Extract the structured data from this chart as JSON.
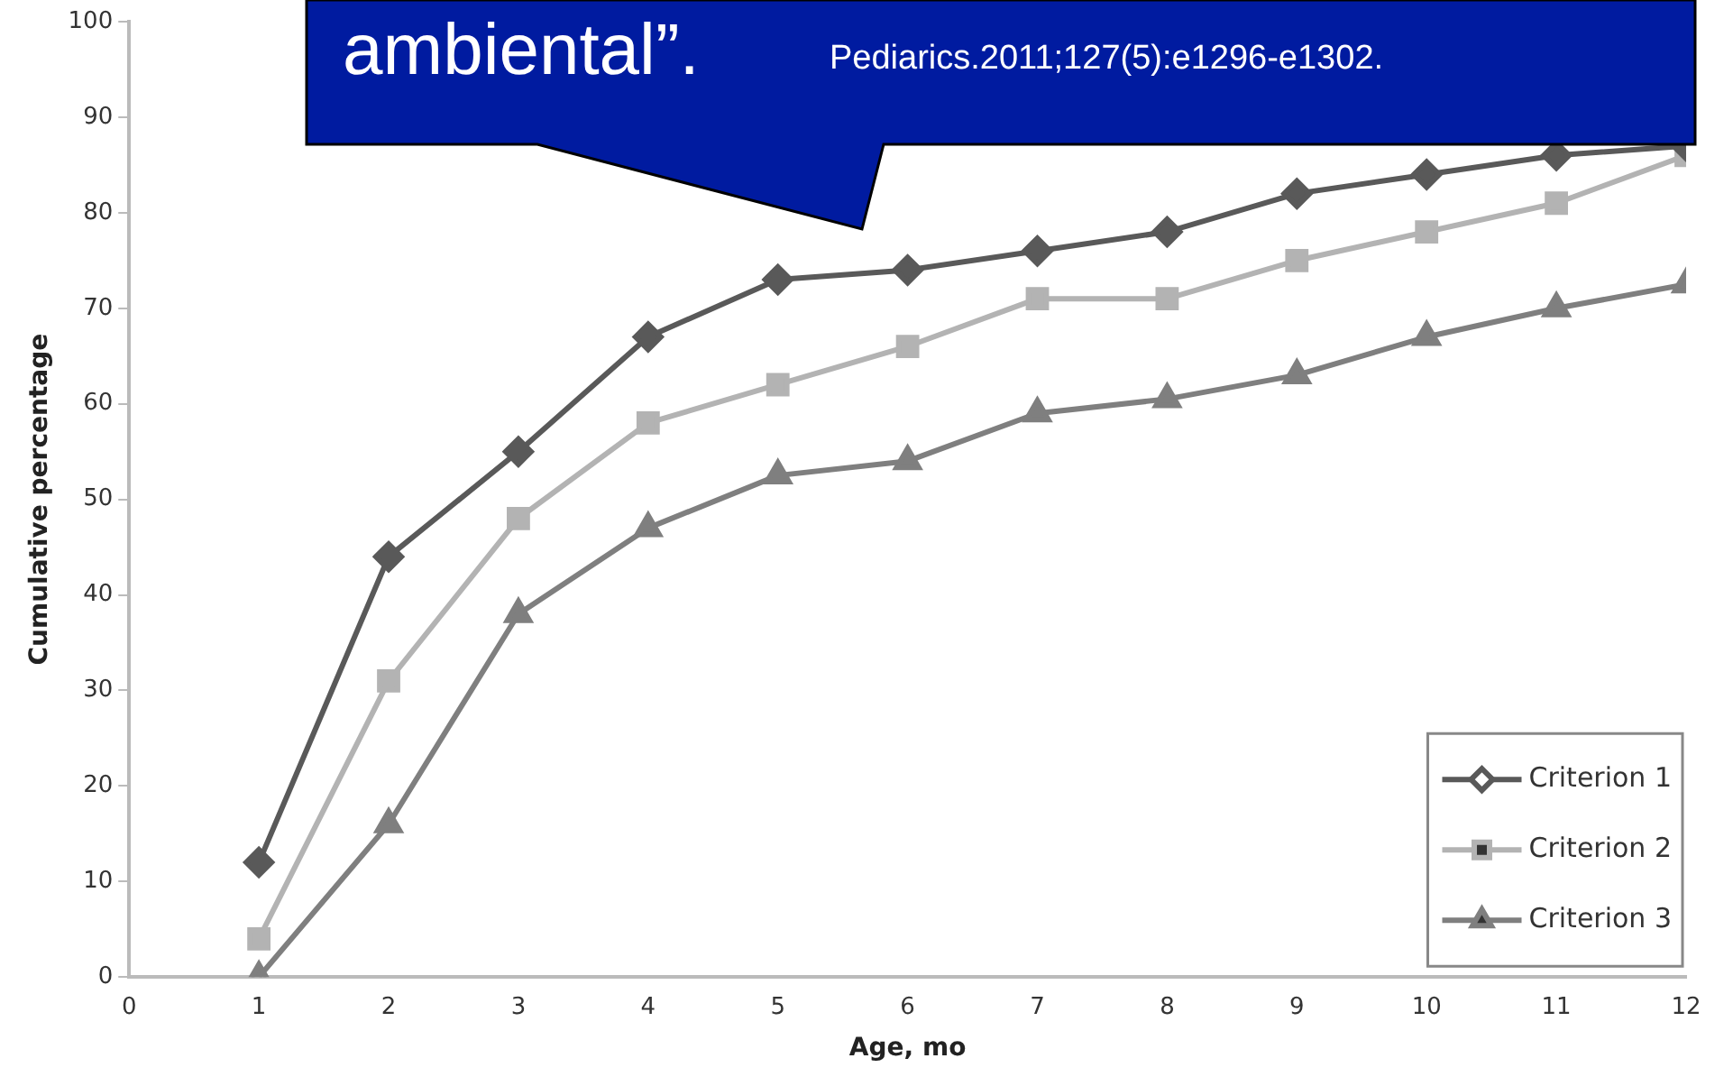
{
  "chart_data": {
    "type": "line",
    "xlabel": "Age, mo",
    "ylabel": "Cumulative percentage",
    "x": [
      1,
      2,
      3,
      4,
      5,
      6,
      7,
      8,
      9,
      10,
      11,
      12
    ],
    "series": [
      {
        "name": "Criterion 1",
        "color": "#595959",
        "marker": "diamond",
        "values": [
          12,
          44,
          55,
          67,
          73,
          74,
          76,
          78,
          82,
          84,
          86,
          87
        ]
      },
      {
        "name": "Criterion 2",
        "color": "#b3b3b3",
        "marker": "square",
        "values": [
          4,
          31,
          48,
          58,
          62,
          66,
          71,
          71,
          75,
          78,
          81,
          86
        ]
      },
      {
        "name": "Criterion 3",
        "color": "#7f7f7f",
        "marker": "triangle",
        "values": [
          0,
          16,
          38,
          47,
          52.5,
          54,
          59,
          60.5,
          63,
          67,
          70,
          72.5
        ]
      }
    ],
    "xlim": [
      0,
      12
    ],
    "xticks": [
      0,
      1,
      2,
      3,
      4,
      5,
      6,
      7,
      8,
      9,
      10,
      11,
      12
    ],
    "ylim": [
      0,
      100
    ],
    "yticks": [
      0,
      10,
      20,
      30,
      40,
      50,
      60,
      70,
      80,
      90,
      100
    ],
    "grid": false,
    "legend": "bottom right",
    "line_style": "solid",
    "annotations": [
      "ambiental”.",
      "Pediarics.2011;127(5):e1296-e1302."
    ]
  }
}
